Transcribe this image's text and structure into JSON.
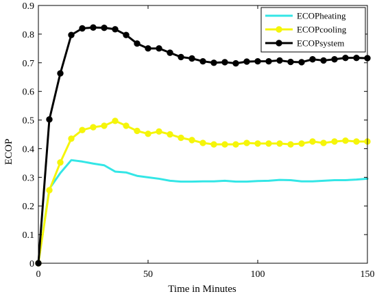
{
  "chart_data": {
    "type": "line",
    "title": "",
    "xlabel": "Time in Minutes",
    "ylabel": "ECOP",
    "xlim": [
      0,
      150
    ],
    "ylim": [
      0,
      0.9
    ],
    "xticks": [
      0,
      50,
      100,
      150
    ],
    "yticks": [
      0,
      0.1,
      0.2,
      0.3,
      0.4,
      0.5,
      0.6,
      0.7,
      0.8,
      0.9
    ],
    "grid": false,
    "legend_position": "top-right",
    "series": [
      {
        "name": "ECOPheating",
        "color": "#33e6e6",
        "marker": "none",
        "x": [
          0,
          5,
          10,
          15,
          20,
          25,
          30,
          35,
          40,
          45,
          50,
          55,
          60,
          65,
          70,
          75,
          80,
          85,
          90,
          95,
          100,
          105,
          110,
          115,
          120,
          125,
          130,
          135,
          140,
          145,
          150
        ],
        "values": [
          0,
          0.26,
          0.315,
          0.36,
          0.355,
          0.348,
          0.342,
          0.32,
          0.317,
          0.305,
          0.3,
          0.295,
          0.288,
          0.285,
          0.285,
          0.286,
          0.286,
          0.288,
          0.285,
          0.285,
          0.287,
          0.288,
          0.291,
          0.29,
          0.286,
          0.286,
          0.288,
          0.29,
          0.29,
          0.292,
          0.295
        ]
      },
      {
        "name": "ECOPcooling",
        "color": "#f5f50a",
        "marker": "circle",
        "x": [
          0,
          5,
          10,
          15,
          20,
          25,
          30,
          35,
          40,
          45,
          50,
          55,
          60,
          65,
          70,
          75,
          80,
          85,
          90,
          95,
          100,
          105,
          110,
          115,
          120,
          125,
          130,
          135,
          140,
          145,
          150
        ],
        "values": [
          0,
          0.255,
          0.352,
          0.435,
          0.465,
          0.475,
          0.48,
          0.497,
          0.48,
          0.462,
          0.452,
          0.46,
          0.45,
          0.438,
          0.43,
          0.42,
          0.415,
          0.415,
          0.415,
          0.42,
          0.418,
          0.418,
          0.418,
          0.415,
          0.418,
          0.425,
          0.42,
          0.425,
          0.428,
          0.425,
          0.425
        ]
      },
      {
        "name": "ECOPsystem",
        "color": "#000000",
        "marker": "circle",
        "x": [
          0,
          5,
          10,
          15,
          20,
          25,
          30,
          35,
          40,
          45,
          50,
          55,
          60,
          65,
          70,
          75,
          80,
          85,
          90,
          95,
          100,
          105,
          110,
          115,
          120,
          125,
          130,
          135,
          140,
          145,
          150
        ],
        "values": [
          0,
          0.502,
          0.663,
          0.797,
          0.82,
          0.823,
          0.822,
          0.817,
          0.797,
          0.767,
          0.75,
          0.75,
          0.735,
          0.72,
          0.715,
          0.705,
          0.7,
          0.702,
          0.698,
          0.704,
          0.705,
          0.705,
          0.708,
          0.703,
          0.702,
          0.712,
          0.708,
          0.712,
          0.717,
          0.717,
          0.716
        ]
      }
    ]
  }
}
